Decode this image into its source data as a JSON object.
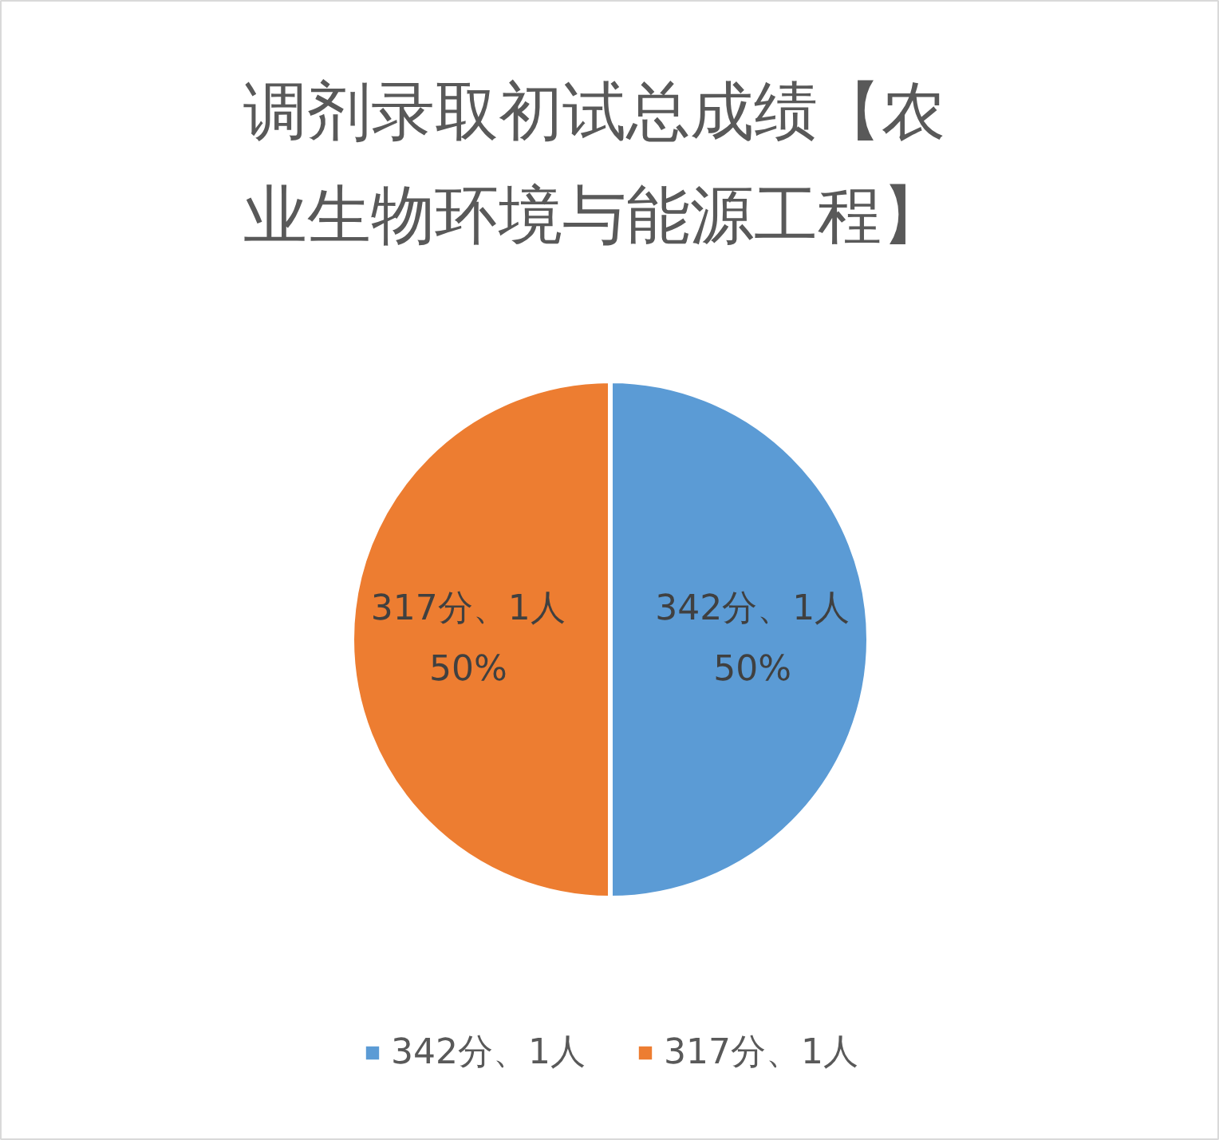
{
  "chart_data": {
    "type": "pie",
    "title": "调剂录取初试总成绩【农业生物环境与能源工程】",
    "categories": [
      "342分、1人",
      "317分、1人"
    ],
    "values": [
      50,
      50
    ],
    "colors": [
      "#5b9bd5",
      "#ed7d31"
    ],
    "value_labels": [
      "50%",
      "50%"
    ],
    "legend": "bottom"
  }
}
